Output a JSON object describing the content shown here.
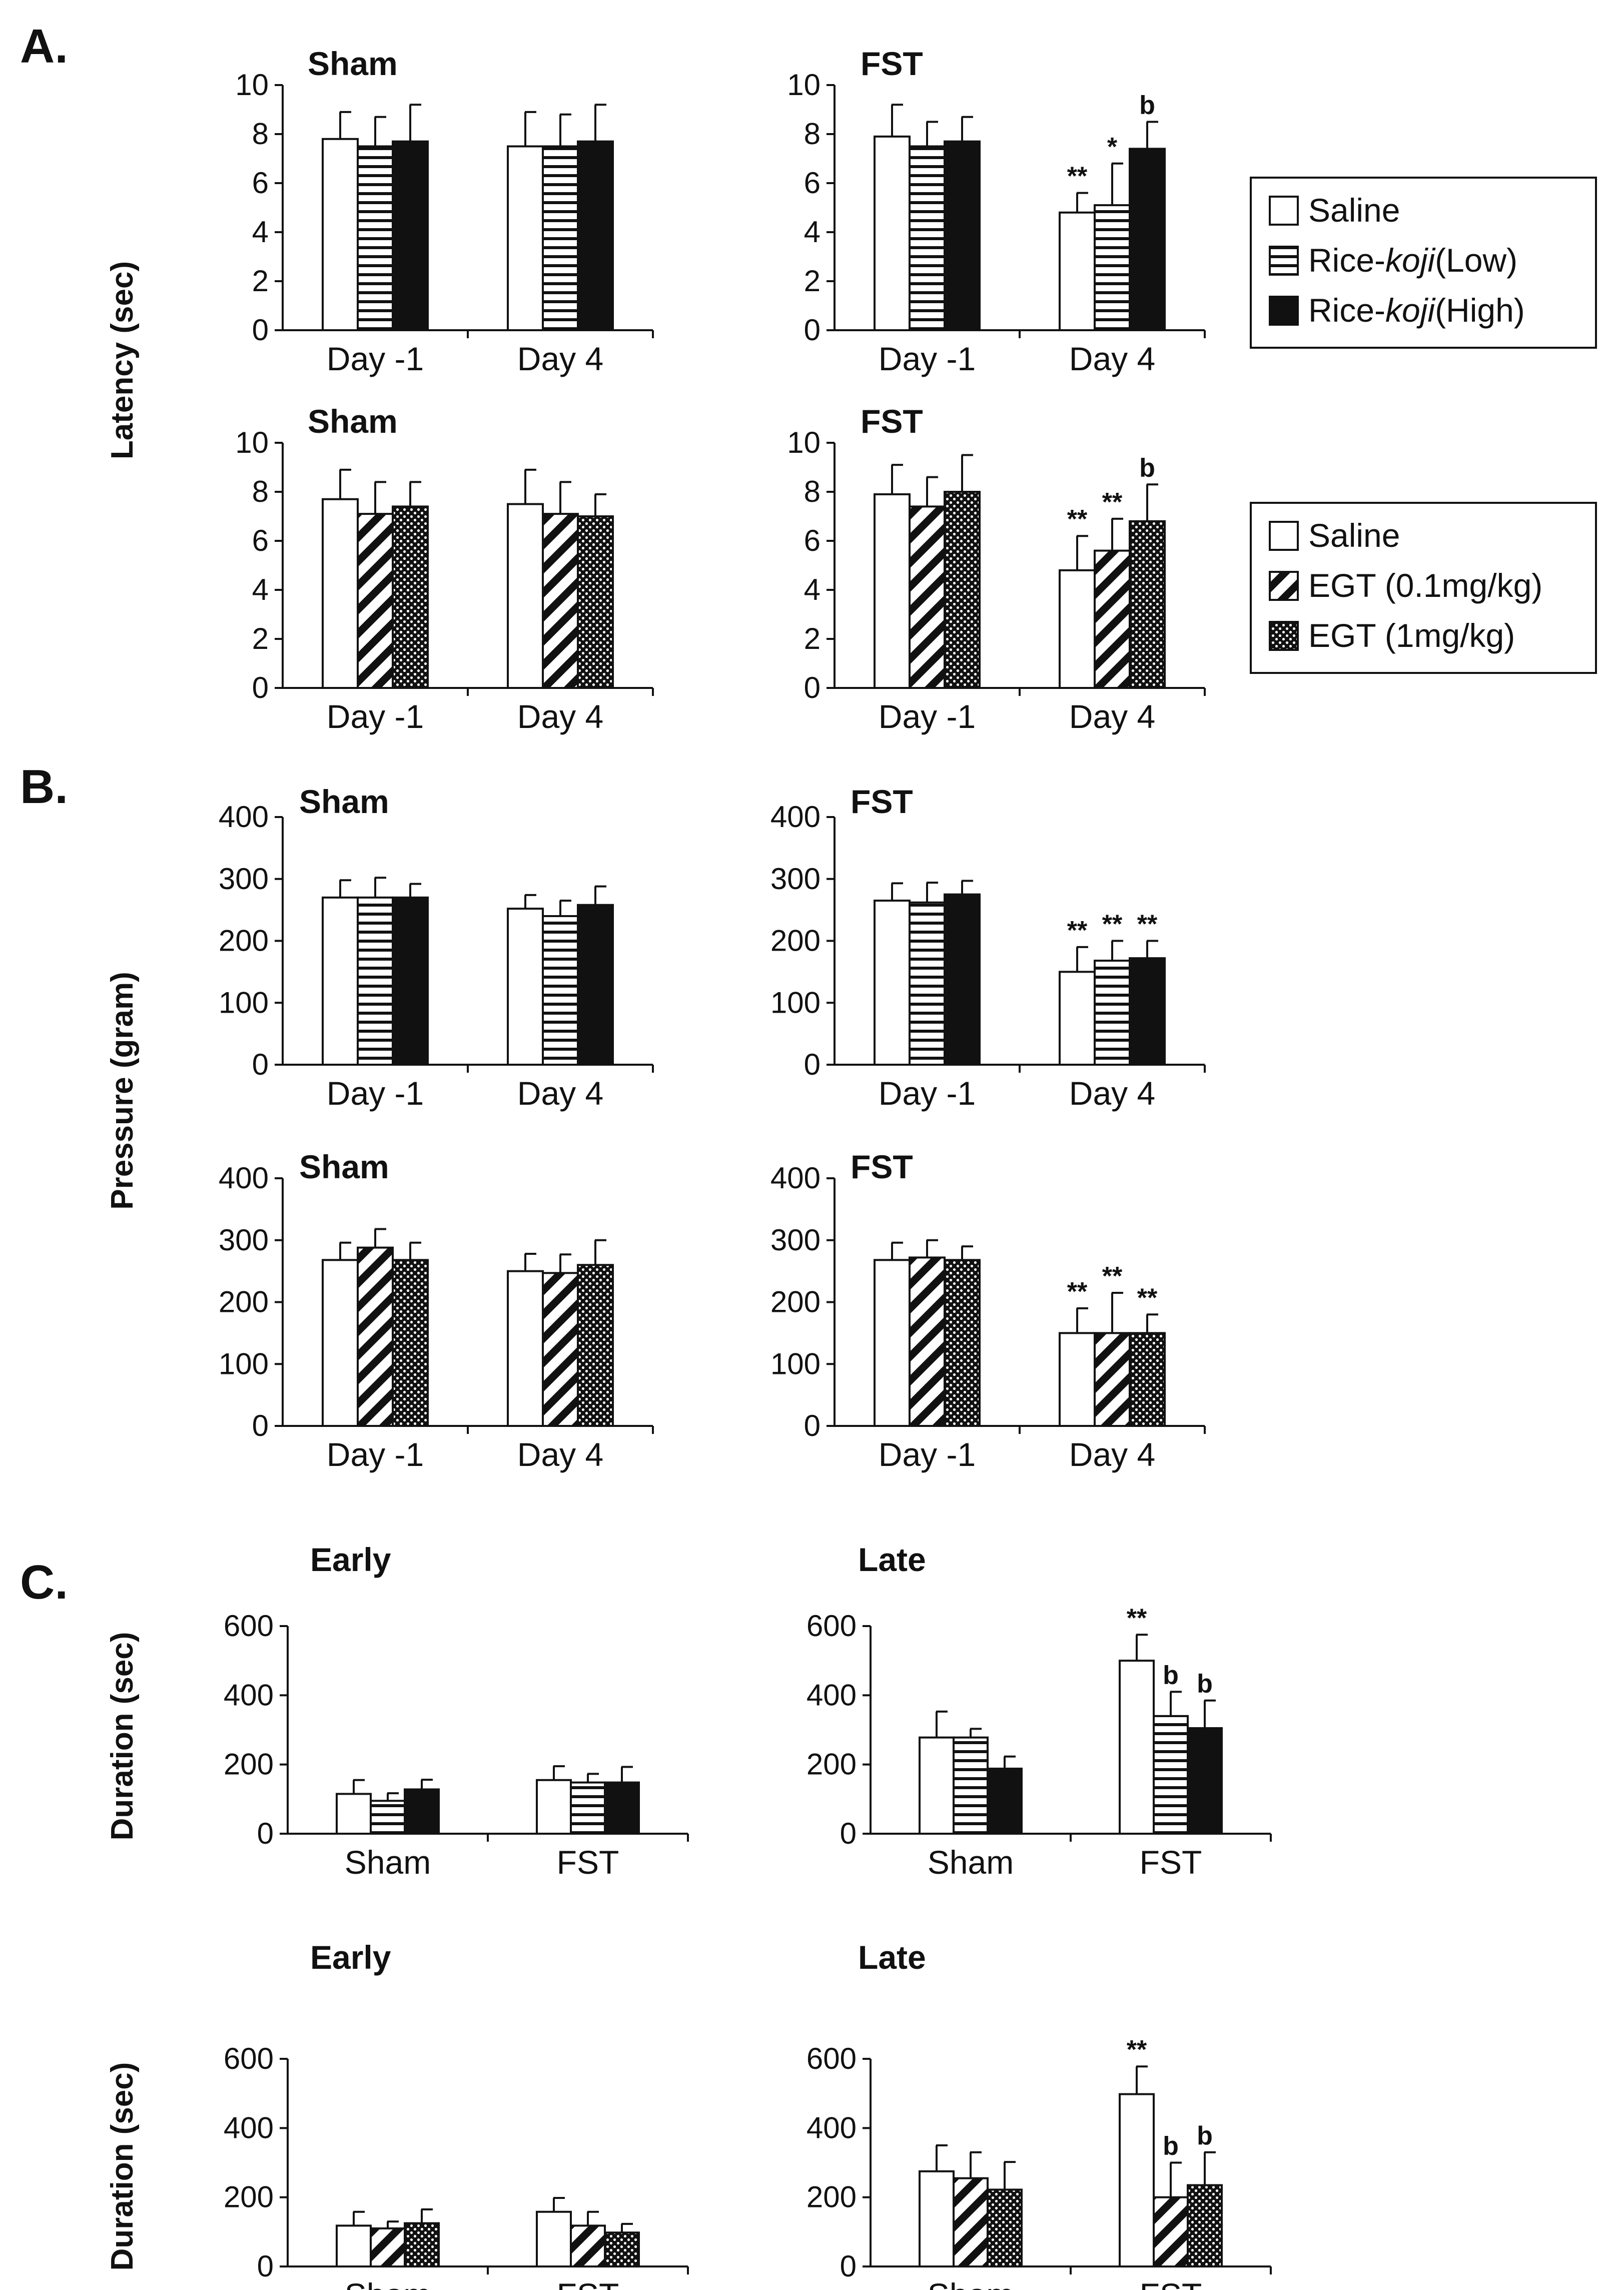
{
  "panel_labels": [
    "A.",
    "B.",
    "C."
  ],
  "y_labels": {
    "A": "Latency (sec)",
    "B": "Pressure (gram)",
    "C": "Duration (sec)"
  },
  "legends": [
    {
      "items": [
        {
          "label_parts": [
            {
              "text": "Saline"
            }
          ],
          "pattern": "white"
        },
        {
          "label_parts": [
            {
              "text": "Rice-"
            },
            {
              "text": "koji",
              "italic": true
            },
            {
              "text": "(Low)"
            }
          ],
          "pattern": "hlines"
        },
        {
          "label_parts": [
            {
              "text": "Rice-"
            },
            {
              "text": "koji",
              "italic": true
            },
            {
              "text": "(High)"
            }
          ],
          "pattern": "black"
        }
      ]
    },
    {
      "items": [
        {
          "label_parts": [
            {
              "text": "Saline"
            }
          ],
          "pattern": "white"
        },
        {
          "label_parts": [
            {
              "text": "EGT (0.1mg/kg)"
            }
          ],
          "pattern": "diag"
        },
        {
          "label_parts": [
            {
              "text": "EGT (1mg/kg)"
            }
          ],
          "pattern": "dots"
        }
      ]
    }
  ],
  "chart_data": [
    {
      "id": "A1-sham",
      "type": "bar",
      "title": "Sham",
      "ylabel": "Latency (sec)",
      "ylim": [
        0,
        10
      ],
      "ticks": [
        0,
        2,
        4,
        6,
        8,
        10
      ],
      "patterns": [
        "white",
        "hlines",
        "black"
      ],
      "categories": [
        "Day -1",
        "Day 4"
      ],
      "series": [
        {
          "name": "Saline",
          "values": [
            7.8,
            7.5
          ],
          "errors": [
            1.1,
            1.4
          ]
        },
        {
          "name": "Rice-koji (Low)",
          "values": [
            7.5,
            7.5
          ],
          "errors": [
            1.2,
            1.3
          ]
        },
        {
          "name": "Rice-koji (High)",
          "values": [
            7.7,
            7.7
          ],
          "errors": [
            1.5,
            1.5
          ]
        }
      ],
      "annotations": [
        [
          "",
          "",
          ""
        ],
        [
          "",
          "",
          ""
        ]
      ]
    },
    {
      "id": "A1-fst",
      "type": "bar",
      "title": "FST",
      "ylabel": "",
      "ylim": [
        0,
        10
      ],
      "ticks": [
        0,
        2,
        4,
        6,
        8,
        10
      ],
      "patterns": [
        "white",
        "hlines",
        "black"
      ],
      "categories": [
        "Day -1",
        "Day 4"
      ],
      "series": [
        {
          "name": "Saline",
          "values": [
            7.9,
            4.8
          ],
          "errors": [
            1.3,
            0.8
          ]
        },
        {
          "name": "Rice-koji (Low)",
          "values": [
            7.5,
            5.1
          ],
          "errors": [
            1.0,
            1.7
          ]
        },
        {
          "name": "Rice-koji (High)",
          "values": [
            7.7,
            7.4
          ],
          "errors": [
            1.0,
            1.1
          ]
        }
      ],
      "annotations": [
        [
          "",
          "",
          ""
        ],
        [
          "**",
          "*",
          "b"
        ]
      ]
    },
    {
      "id": "A2-sham",
      "type": "bar",
      "title": "Sham",
      "ylabel": "",
      "ylim": [
        0,
        10
      ],
      "ticks": [
        0,
        2,
        4,
        6,
        8,
        10
      ],
      "patterns": [
        "white",
        "diag",
        "dots"
      ],
      "categories": [
        "Day -1",
        "Day 4"
      ],
      "series": [
        {
          "name": "Saline",
          "values": [
            7.7,
            7.5
          ],
          "errors": [
            1.2,
            1.4
          ]
        },
        {
          "name": "EGT (0.1mg/kg)",
          "values": [
            7.1,
            7.1
          ],
          "errors": [
            1.3,
            1.3
          ]
        },
        {
          "name": "EGT (1mg/kg)",
          "values": [
            7.4,
            7.0
          ],
          "errors": [
            1.0,
            0.9
          ]
        }
      ],
      "annotations": [
        [
          "",
          "",
          ""
        ],
        [
          "",
          "",
          ""
        ]
      ]
    },
    {
      "id": "A2-fst",
      "type": "bar",
      "title": "FST",
      "ylabel": "",
      "ylim": [
        0,
        10
      ],
      "ticks": [
        0,
        2,
        4,
        6,
        8,
        10
      ],
      "patterns": [
        "white",
        "diag",
        "dots"
      ],
      "categories": [
        "Day -1",
        "Day 4"
      ],
      "series": [
        {
          "name": "Saline",
          "values": [
            7.9,
            4.8
          ],
          "errors": [
            1.2,
            1.4
          ]
        },
        {
          "name": "EGT (0.1mg/kg)",
          "values": [
            7.4,
            5.6
          ],
          "errors": [
            1.2,
            1.3
          ]
        },
        {
          "name": "EGT (1mg/kg)",
          "values": [
            8.0,
            6.8
          ],
          "errors": [
            1.5,
            1.5
          ]
        }
      ],
      "annotations": [
        [
          "",
          "",
          ""
        ],
        [
          "**",
          "**",
          "b"
        ]
      ]
    },
    {
      "id": "B1-sham",
      "type": "bar",
      "title": "Sham",
      "ylabel": "Pressure (gram)",
      "ylim": [
        0,
        400
      ],
      "ticks": [
        0,
        100,
        200,
        300,
        400
      ],
      "patterns": [
        "white",
        "hlines",
        "black"
      ],
      "categories": [
        "Day -1",
        "Day 4"
      ],
      "series": [
        {
          "name": "Saline",
          "values": [
            270,
            252
          ],
          "errors": [
            28,
            22
          ]
        },
        {
          "name": "Rice-koji (Low)",
          "values": [
            270,
            240
          ],
          "errors": [
            32,
            25
          ]
        },
        {
          "name": "Rice-koji (High)",
          "values": [
            270,
            258
          ],
          "errors": [
            22,
            30
          ]
        }
      ],
      "annotations": [
        [
          "",
          "",
          ""
        ],
        [
          "",
          "",
          ""
        ]
      ]
    },
    {
      "id": "B1-fst",
      "type": "bar",
      "title": "FST",
      "ylabel": "",
      "ylim": [
        0,
        400
      ],
      "ticks": [
        0,
        100,
        200,
        300,
        400
      ],
      "patterns": [
        "white",
        "hlines",
        "black"
      ],
      "categories": [
        "Day -1",
        "Day 4"
      ],
      "series": [
        {
          "name": "Saline",
          "values": [
            265,
            150
          ],
          "errors": [
            28,
            40
          ]
        },
        {
          "name": "Rice-koji (Low)",
          "values": [
            262,
            168
          ],
          "errors": [
            32,
            32
          ]
        },
        {
          "name": "Rice-koji (High)",
          "values": [
            275,
            172
          ],
          "errors": [
            22,
            28
          ]
        }
      ],
      "annotations": [
        [
          "",
          "",
          ""
        ],
        [
          "**",
          "**",
          "**"
        ]
      ]
    },
    {
      "id": "B2-sham",
      "type": "bar",
      "title": "Sham",
      "ylabel": "",
      "ylim": [
        0,
        400
      ],
      "ticks": [
        0,
        100,
        200,
        300,
        400
      ],
      "patterns": [
        "white",
        "diag",
        "dots"
      ],
      "categories": [
        "Day -1",
        "Day 4"
      ],
      "series": [
        {
          "name": "Saline",
          "values": [
            268,
            250
          ],
          "errors": [
            28,
            28
          ]
        },
        {
          "name": "EGT (0.1mg/kg)",
          "values": [
            288,
            247
          ],
          "errors": [
            30,
            30
          ]
        },
        {
          "name": "EGT (1mg/kg)",
          "values": [
            268,
            260
          ],
          "errors": [
            28,
            40
          ]
        }
      ],
      "annotations": [
        [
          "",
          "",
          ""
        ],
        [
          "",
          "",
          ""
        ]
      ]
    },
    {
      "id": "B2-fst",
      "type": "bar",
      "title": "FST",
      "ylabel": "",
      "ylim": [
        0,
        400
      ],
      "ticks": [
        0,
        100,
        200,
        300,
        400
      ],
      "patterns": [
        "white",
        "diag",
        "dots"
      ],
      "categories": [
        "Day -1",
        "Day 4"
      ],
      "series": [
        {
          "name": "Saline",
          "values": [
            268,
            150
          ],
          "errors": [
            28,
            40
          ]
        },
        {
          "name": "EGT (0.1mg/kg)",
          "values": [
            272,
            150
          ],
          "errors": [
            28,
            65
          ]
        },
        {
          "name": "EGT (1mg/kg)",
          "values": [
            268,
            150
          ],
          "errors": [
            22,
            30
          ]
        }
      ],
      "annotations": [
        [
          "",
          "",
          ""
        ],
        [
          "**",
          "**",
          "**"
        ]
      ]
    },
    {
      "id": "C1-early",
      "type": "bar",
      "title": "Early",
      "ylabel": "Duration (sec)",
      "ylim": [
        0,
        600
      ],
      "ticks": [
        0,
        200,
        400,
        600
      ],
      "patterns": [
        "white",
        "hlines",
        "black"
      ],
      "categories": [
        "Sham",
        "FST"
      ],
      "series": [
        {
          "name": "Saline",
          "values": [
            115,
            155
          ],
          "errors": [
            40,
            40
          ]
        },
        {
          "name": "Rice-koji (Low)",
          "values": [
            95,
            148
          ],
          "errors": [
            22,
            25
          ]
        },
        {
          "name": "Rice-koji (High)",
          "values": [
            128,
            148
          ],
          "errors": [
            28,
            45
          ]
        }
      ],
      "annotations": [
        [
          "",
          "",
          ""
        ],
        [
          "",
          "",
          ""
        ]
      ]
    },
    {
      "id": "C1-late",
      "type": "bar",
      "title": "Late",
      "ylabel": "",
      "ylim": [
        0,
        600
      ],
      "ticks": [
        0,
        200,
        400,
        600
      ],
      "patterns": [
        "white",
        "hlines",
        "black"
      ],
      "categories": [
        "Sham",
        "FST"
      ],
      "series": [
        {
          "name": "Saline",
          "values": [
            278,
            500
          ],
          "errors": [
            75,
            75
          ]
        },
        {
          "name": "Rice-koji (Low)",
          "values": [
            278,
            340
          ],
          "errors": [
            25,
            70
          ]
        },
        {
          "name": "Rice-koji (High)",
          "values": [
            188,
            305
          ],
          "errors": [
            35,
            80
          ]
        }
      ],
      "annotations": [
        [
          "",
          "",
          ""
        ],
        [
          "**",
          "b",
          "b"
        ]
      ]
    },
    {
      "id": "C2-early",
      "type": "bar",
      "title": "Early",
      "ylabel": "Duration (sec)",
      "ylim": [
        0,
        600
      ],
      "ticks": [
        0,
        200,
        400,
        600
      ],
      "patterns": [
        "white",
        "diag",
        "dots"
      ],
      "categories": [
        "Sham",
        "FST"
      ],
      "series": [
        {
          "name": "Saline",
          "values": [
            118,
            158
          ],
          "errors": [
            40,
            40
          ]
        },
        {
          "name": "EGT (0.1mg/kg)",
          "values": [
            110,
            118
          ],
          "errors": [
            20,
            40
          ]
        },
        {
          "name": "EGT (1mg/kg)",
          "values": [
            125,
            98
          ],
          "errors": [
            40,
            25
          ]
        }
      ],
      "annotations": [
        [
          "",
          "",
          ""
        ],
        [
          "",
          "",
          ""
        ]
      ]
    },
    {
      "id": "C2-late",
      "type": "bar",
      "title": "Late",
      "ylabel": "",
      "ylim": [
        0,
        600
      ],
      "ticks": [
        0,
        200,
        400,
        600
      ],
      "patterns": [
        "white",
        "diag",
        "dots"
      ],
      "categories": [
        "Sham",
        "FST"
      ],
      "series": [
        {
          "name": "Saline",
          "values": [
            275,
            498
          ],
          "errors": [
            75,
            80
          ]
        },
        {
          "name": "EGT (0.1mg/kg)",
          "values": [
            255,
            200
          ],
          "errors": [
            75,
            100
          ]
        },
        {
          "name": "EGT (1mg/kg)",
          "values": [
            222,
            235
          ],
          "errors": [
            80,
            95
          ]
        }
      ],
      "annotations": [
        [
          "",
          "",
          ""
        ],
        [
          "**",
          "b",
          "b"
        ]
      ]
    }
  ]
}
